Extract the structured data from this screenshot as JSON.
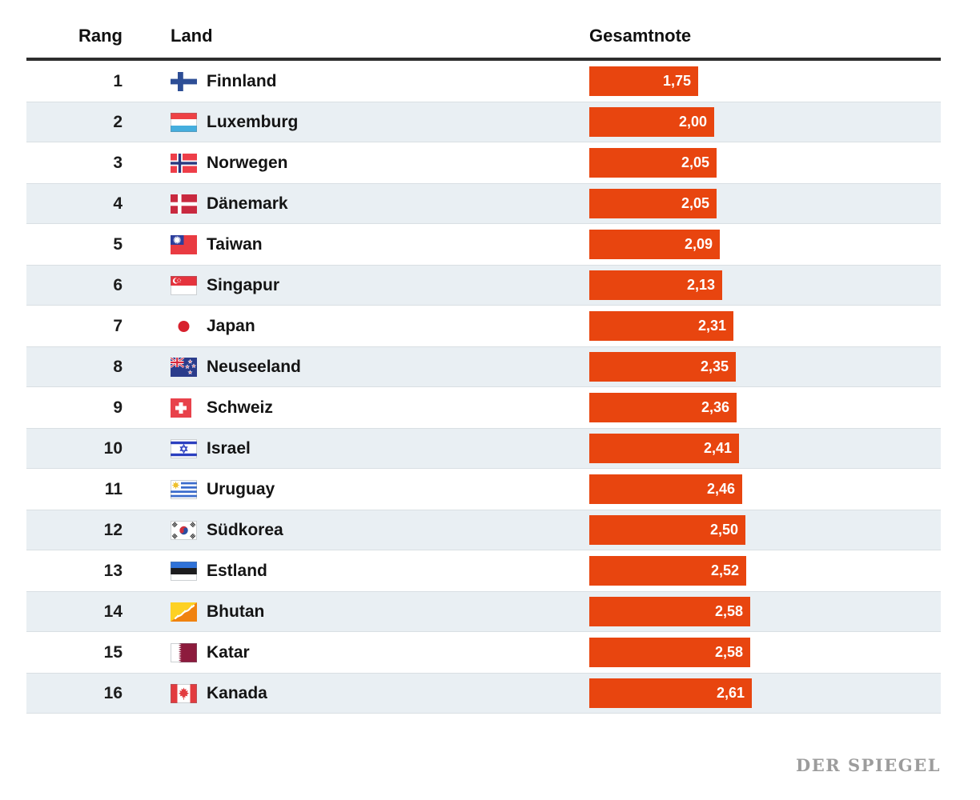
{
  "branding": {
    "logo": "DER SPIEGEL"
  },
  "colors": {
    "bar": "#e8450f",
    "bar_label": "#ffffff",
    "row_alt_background": "#e9eff3",
    "header_rule": "#2d2d2d",
    "logo_gray": "#9c9c9c"
  },
  "chart_data": {
    "type": "bar",
    "orientation": "horizontal",
    "title": "",
    "columns": [
      "Rang",
      "Land",
      "Gesamtnote"
    ],
    "legend": [],
    "grid": "off",
    "value_axis_note": "bar length proportional to Gesamtnote (school-grade, lower is better)",
    "xlim": [
      0,
      2.61
    ],
    "bar_color": "#e8450f",
    "categories": [
      "Finnland",
      "Luxemburg",
      "Norwegen",
      "Dänemark",
      "Taiwan",
      "Singapur",
      "Japan",
      "Neuseeland",
      "Schweiz",
      "Israel",
      "Uruguay",
      "Südkorea",
      "Estland",
      "Bhutan",
      "Katar",
      "Kanada"
    ],
    "values": [
      1.75,
      2.0,
      2.05,
      2.05,
      2.09,
      2.13,
      2.31,
      2.35,
      2.36,
      2.41,
      2.46,
      2.5,
      2.52,
      2.58,
      2.58,
      2.61
    ],
    "value_labels": [
      "1,75",
      "2,00",
      "2,05",
      "2,05",
      "2,09",
      "2,13",
      "2,31",
      "2,35",
      "2,36",
      "2,41",
      "2,46",
      "2,50",
      "2,52",
      "2,58",
      "2,58",
      "2,61"
    ],
    "rows": [
      {
        "rank": "1",
        "country": "Finnland",
        "flag_icon": "finnland-flag-icon",
        "score": 1.75,
        "score_label": "1,75"
      },
      {
        "rank": "2",
        "country": "Luxemburg",
        "flag_icon": "luxemburg-flag-icon",
        "score": 2.0,
        "score_label": "2,00"
      },
      {
        "rank": "3",
        "country": "Norwegen",
        "flag_icon": "norwegen-flag-icon",
        "score": 2.05,
        "score_label": "2,05"
      },
      {
        "rank": "4",
        "country": "Dänemark",
        "flag_icon": "daenemark-flag-icon",
        "score": 2.05,
        "score_label": "2,05"
      },
      {
        "rank": "5",
        "country": "Taiwan",
        "flag_icon": "taiwan-flag-icon",
        "score": 2.09,
        "score_label": "2,09"
      },
      {
        "rank": "6",
        "country": "Singapur",
        "flag_icon": "singapur-flag-icon",
        "score": 2.13,
        "score_label": "2,13"
      },
      {
        "rank": "7",
        "country": "Japan",
        "flag_icon": "japan-flag-icon",
        "score": 2.31,
        "score_label": "2,31"
      },
      {
        "rank": "8",
        "country": "Neuseeland",
        "flag_icon": "neuseeland-flag-icon",
        "score": 2.35,
        "score_label": "2,35"
      },
      {
        "rank": "9",
        "country": "Schweiz",
        "flag_icon": "schweiz-flag-icon",
        "score": 2.36,
        "score_label": "2,36"
      },
      {
        "rank": "10",
        "country": "Israel",
        "flag_icon": "israel-flag-icon",
        "score": 2.41,
        "score_label": "2,41"
      },
      {
        "rank": "11",
        "country": "Uruguay",
        "flag_icon": "uruguay-flag-icon",
        "score": 2.46,
        "score_label": "2,46"
      },
      {
        "rank": "12",
        "country": "Südkorea",
        "flag_icon": "suedkorea-flag-icon",
        "score": 2.5,
        "score_label": "2,50"
      },
      {
        "rank": "13",
        "country": "Estland",
        "flag_icon": "estland-flag-icon",
        "score": 2.52,
        "score_label": "2,52"
      },
      {
        "rank": "14",
        "country": "Bhutan",
        "flag_icon": "bhutan-flag-icon",
        "score": 2.58,
        "score_label": "2,58"
      },
      {
        "rank": "15",
        "country": "Katar",
        "flag_icon": "katar-flag-icon",
        "score": 2.58,
        "score_label": "2,58"
      },
      {
        "rank": "16",
        "country": "Kanada",
        "flag_icon": "kanada-flag-icon",
        "score": 2.61,
        "score_label": "2,61"
      }
    ]
  }
}
